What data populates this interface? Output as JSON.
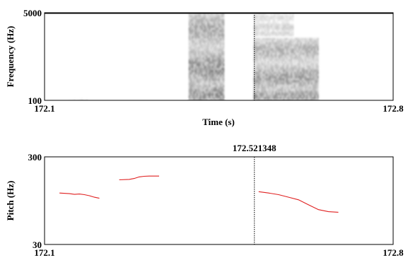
{
  "chart_data": [
    {
      "type": "heatmap",
      "title": "",
      "xlabel": "Time (s)",
      "ylabel": "Frequency (Hz)",
      "xlim": [
        172.1,
        172.8
      ],
      "ylim": [
        100,
        5000
      ],
      "x_tick_labels": [
        "172.1",
        "172.8"
      ],
      "y_tick_labels": [
        "5000",
        "100"
      ],
      "colormap": "grayscale (darker = more energy)",
      "regions": [
        {
          "t_start": 172.39,
          "t_end": 172.46,
          "f_low": 100,
          "f_high": 5000,
          "intensity": 0.85
        },
        {
          "t_start": 172.52,
          "t_end": 172.65,
          "f_low": 100,
          "f_high": 3600,
          "intensity": 0.75
        },
        {
          "t_start": 172.52,
          "t_end": 172.6,
          "f_low": 3800,
          "f_high": 5000,
          "intensity": 0.35
        },
        {
          "t_start": 172.15,
          "t_end": 172.19,
          "f_low": 100,
          "f_high": 350,
          "intensity": 0.15
        }
      ],
      "cursor_time": 172.521348
    },
    {
      "type": "line",
      "title": "",
      "xlabel": "",
      "ylabel": "Pitch (Hz)",
      "xlim": [
        172.1,
        172.8
      ],
      "ylim": [
        30,
        300
      ],
      "y_scale": "log",
      "x_tick_labels": [
        "172.1",
        "172.8"
      ],
      "y_tick_labels": [
        "300",
        "30"
      ],
      "cursor_label": "172.521348",
      "cursor_time": 172.521348,
      "line_color": "#e02020",
      "series": [
        {
          "x": [
            172.13,
            172.15,
            172.16,
            172.17,
            172.18,
            172.19,
            172.2,
            172.21
          ],
          "y": [
            116,
            114,
            112,
            113,
            111,
            108,
            104,
            101
          ]
        },
        {
          "x": [
            172.25,
            172.27,
            172.28,
            172.29,
            172.3,
            172.31,
            172.33
          ],
          "y": [
            164,
            166,
            170,
            177,
            180,
            181,
            181
          ]
        },
        {
          "x": [
            172.53,
            172.55,
            172.57,
            172.59,
            172.61,
            172.63,
            172.65,
            172.67,
            172.69
          ],
          "y": [
            120,
            116,
            111,
            104,
            97,
            85,
            75,
            71,
            70
          ]
        }
      ]
    }
  ]
}
